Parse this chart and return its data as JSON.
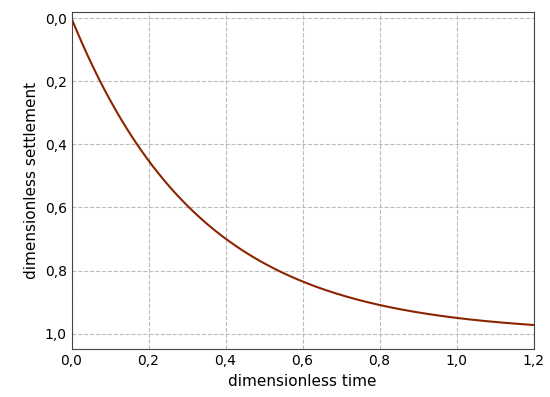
{
  "xlabel": "dimensionless time",
  "ylabel": "dimensionless settlement",
  "xlim": [
    0.0,
    1.2
  ],
  "ylim": [
    1.05,
    -0.02
  ],
  "xticks": [
    0.0,
    0.2,
    0.4,
    0.6,
    0.8,
    1.0,
    1.2
  ],
  "yticks": [
    0.0,
    0.2,
    0.4,
    0.6,
    0.8,
    1.0
  ],
  "line_color": "#8B2500",
  "line_width": 1.5,
  "grid_color": "#BBBBBB",
  "grid_style": "--",
  "grid_linewidth": 0.8,
  "bg_color": "#FFFFFF",
  "xlabel_fontsize": 11,
  "ylabel_fontsize": 11,
  "tick_fontsize": 10,
  "decay_k": 3.0,
  "T_max": 1.2,
  "T_points": 2000
}
